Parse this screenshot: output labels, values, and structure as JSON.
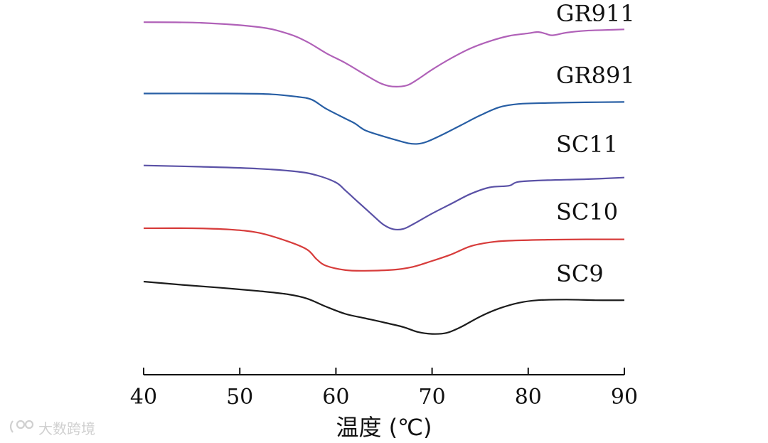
{
  "chart_data": {
    "type": "line",
    "title": "",
    "xlabel": "温度 (℃)",
    "ylabel": "",
    "xlim": [
      40,
      90
    ],
    "x_ticks": [
      40,
      50,
      60,
      70,
      80,
      90
    ],
    "grid": false,
    "series": [
      {
        "name": "GR911",
        "color": "#b061b8",
        "points": [
          [
            40,
            10.3
          ],
          [
            46,
            10.28
          ],
          [
            52,
            10.15
          ],
          [
            55,
            9.95
          ],
          [
            57,
            9.7
          ],
          [
            59,
            9.35
          ],
          [
            61,
            9.05
          ],
          [
            63,
            8.7
          ],
          [
            64.5,
            8.45
          ],
          [
            65.5,
            8.35
          ],
          [
            66.5,
            8.33
          ],
          [
            67.5,
            8.38
          ],
          [
            68.5,
            8.55
          ],
          [
            70,
            8.85
          ],
          [
            72,
            9.2
          ],
          [
            74,
            9.5
          ],
          [
            76,
            9.72
          ],
          [
            78,
            9.88
          ],
          [
            80,
            9.96
          ],
          [
            81,
            10.0
          ],
          [
            81.8,
            9.95
          ],
          [
            82.5,
            9.9
          ],
          [
            84,
            9.98
          ],
          [
            86,
            10.04
          ],
          [
            88,
            10.06
          ],
          [
            90,
            10.08
          ]
        ]
      },
      {
        "name": "GR891",
        "color": "#275ea4",
        "points": [
          [
            40,
            8.12
          ],
          [
            48,
            8.12
          ],
          [
            53,
            8.1
          ],
          [
            56,
            8.02
          ],
          [
            57.5,
            7.93
          ],
          [
            59,
            7.65
          ],
          [
            61,
            7.35
          ],
          [
            62,
            7.2
          ],
          [
            63,
            7.0
          ],
          [
            64.5,
            6.85
          ],
          [
            66,
            6.72
          ],
          [
            67.5,
            6.6
          ],
          [
            68.5,
            6.58
          ],
          [
            69.5,
            6.65
          ],
          [
            71,
            6.85
          ],
          [
            73,
            7.15
          ],
          [
            75,
            7.45
          ],
          [
            77,
            7.7
          ],
          [
            79,
            7.8
          ],
          [
            82,
            7.83
          ],
          [
            86,
            7.85
          ],
          [
            90,
            7.86
          ]
        ]
      },
      {
        "name": "SC11",
        "color": "#5a51a6",
        "points": [
          [
            40,
            5.92
          ],
          [
            46,
            5.88
          ],
          [
            52,
            5.82
          ],
          [
            56,
            5.73
          ],
          [
            58,
            5.62
          ],
          [
            60,
            5.4
          ],
          [
            61,
            5.15
          ],
          [
            62.5,
            4.75
          ],
          [
            64,
            4.35
          ],
          [
            65,
            4.1
          ],
          [
            66,
            3.97
          ],
          [
            67,
            3.98
          ],
          [
            68,
            4.12
          ],
          [
            70,
            4.45
          ],
          [
            72,
            4.75
          ],
          [
            74,
            5.05
          ],
          [
            76,
            5.25
          ],
          [
            78,
            5.3
          ],
          [
            79,
            5.42
          ],
          [
            82,
            5.47
          ],
          [
            86,
            5.5
          ],
          [
            90,
            5.55
          ]
        ]
      },
      {
        "name": "SC10",
        "color": "#d73c3b",
        "points": [
          [
            40,
            4.0
          ],
          [
            45,
            4.0
          ],
          [
            49,
            3.96
          ],
          [
            52,
            3.86
          ],
          [
            55,
            3.6
          ],
          [
            57,
            3.35
          ],
          [
            58,
            3.05
          ],
          [
            59,
            2.85
          ],
          [
            61,
            2.72
          ],
          [
            63,
            2.7
          ],
          [
            66,
            2.73
          ],
          [
            68,
            2.82
          ],
          [
            70,
            3.0
          ],
          [
            72,
            3.2
          ],
          [
            74,
            3.45
          ],
          [
            76,
            3.57
          ],
          [
            78,
            3.62
          ],
          [
            82,
            3.65
          ],
          [
            86,
            3.66
          ],
          [
            90,
            3.66
          ]
        ]
      },
      {
        "name": "SC9",
        "color": "#1c1c1c",
        "points": [
          [
            40,
            2.37
          ],
          [
            44,
            2.27
          ],
          [
            48,
            2.18
          ],
          [
            52,
            2.08
          ],
          [
            55,
            1.98
          ],
          [
            57,
            1.85
          ],
          [
            59,
            1.6
          ],
          [
            61,
            1.38
          ],
          [
            63,
            1.25
          ],
          [
            65,
            1.12
          ],
          [
            67,
            0.98
          ],
          [
            68.5,
            0.83
          ],
          [
            70,
            0.77
          ],
          [
            71.5,
            0.8
          ],
          [
            73,
            0.98
          ],
          [
            75,
            1.3
          ],
          [
            77,
            1.55
          ],
          [
            79,
            1.72
          ],
          [
            81,
            1.8
          ],
          [
            84,
            1.82
          ],
          [
            87,
            1.8
          ],
          [
            90,
            1.8
          ]
        ]
      }
    ]
  },
  "watermark": {
    "text": "大数跨境"
  }
}
